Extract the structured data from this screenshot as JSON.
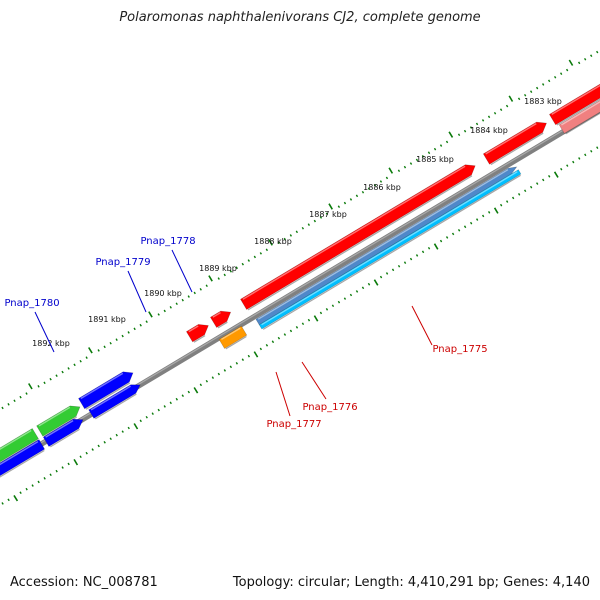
{
  "title": "Polaromonas naphthalenivorans CJ2, complete genome",
  "footer": {
    "accession": "Accession: NC_008781",
    "topology": "Topology: circular; Length: 4,410,291 bp; Genes: 4,140"
  },
  "colors": {
    "backbone": "#808080",
    "tick_green": "#0a7a0a",
    "forward_red": "#ff0000",
    "light_red": "#f08080",
    "forward_orange": "#ff9900",
    "steel_blue": "#4f88c9",
    "sky_blue": "#00bfff",
    "reverse_blue": "#0000ff",
    "green_gene": "#33cc33",
    "label_blue": "#0000cc",
    "label_red": "#cc0000"
  },
  "outer_scale_labels": [
    "1883 kbp",
    "1884 kbp",
    "1885 kbp",
    "1886 kbp",
    "1887 kbp",
    "1888 kbp",
    "1889 kbp",
    "1890 kbp",
    "1891 kbp",
    "1892 kbp"
  ],
  "gene_labels": [
    {
      "text": "Pnap_1775",
      "color": "label_red"
    },
    {
      "text": "Pnap_1776",
      "color": "label_red"
    },
    {
      "text": "Pnap_1777",
      "color": "label_red"
    },
    {
      "text": "Pnap_1778",
      "color": "label_blue"
    },
    {
      "text": "Pnap_1779",
      "color": "label_blue"
    },
    {
      "text": "Pnap_1780",
      "color": "label_blue"
    }
  ]
}
